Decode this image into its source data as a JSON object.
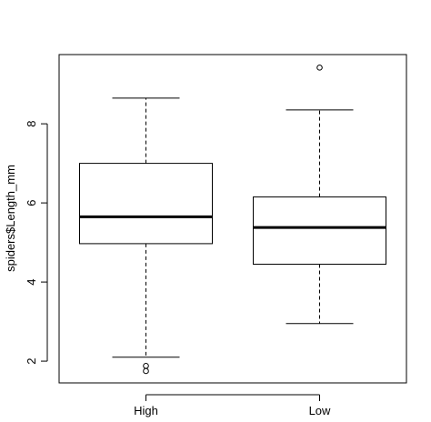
{
  "chart_data": {
    "type": "boxplot",
    "title": "",
    "xlabel": "",
    "ylabel": "spiders$Length_mm",
    "ylim": [
      1.45,
      9.75
    ],
    "yticks": [
      2,
      4,
      6,
      8
    ],
    "grid": false,
    "categories": [
      "High",
      "Low"
    ],
    "boxes": [
      {
        "name": "High",
        "whisker_low": 2.1,
        "q1": 4.97,
        "median": 5.65,
        "q3": 7.0,
        "whisker_high": 8.65,
        "outliers": [
          1.88,
          1.75
        ]
      },
      {
        "name": "Low",
        "whisker_low": 2.95,
        "q1": 4.45,
        "median": 5.38,
        "q3": 6.15,
        "whisker_high": 8.35,
        "outliers": [
          9.42
        ]
      }
    ]
  }
}
